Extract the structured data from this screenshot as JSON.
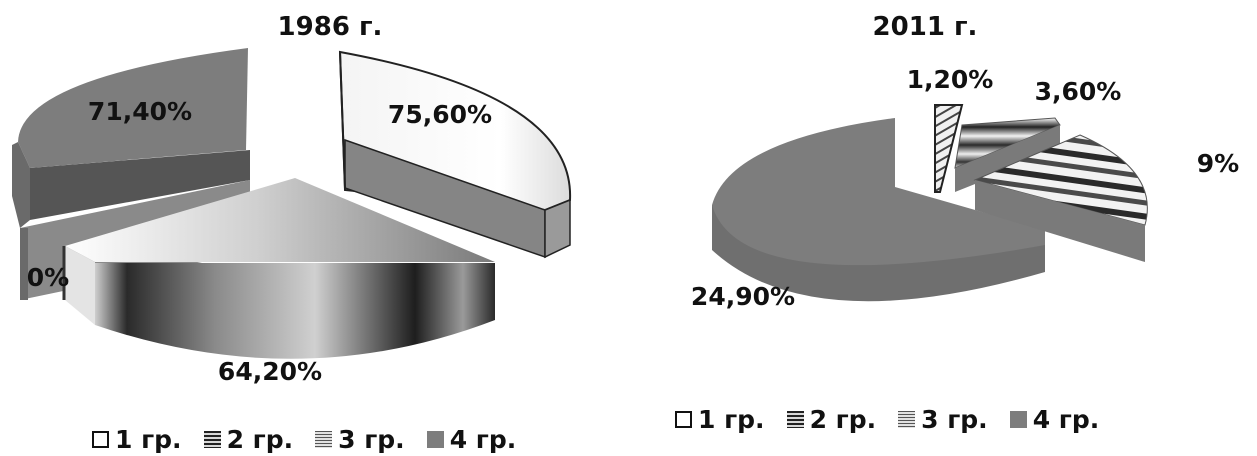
{
  "chart_data": [
    {
      "type": "pie",
      "title": "1986 г.",
      "categories": [
        "1 гр.",
        "2 гр.",
        "3 гр.",
        "4 гр."
      ],
      "values": [
        75.6,
        64.2,
        0,
        71.4
      ],
      "labels": [
        "75,60%",
        "64,20%",
        "0%",
        "71,40%"
      ],
      "legend": "bottom"
    },
    {
      "type": "pie",
      "title": "2011 г.",
      "categories": [
        "1 гр.",
        "2 гр.",
        "3 гр.",
        "4 гр."
      ],
      "values": [
        1.2,
        3.6,
        9,
        24.9
      ],
      "labels": [
        "1,20%",
        "3,60%",
        "9%",
        "24,90%"
      ],
      "legend": "bottom"
    }
  ],
  "colors": {
    "group1": "#ffffff",
    "group2": "#3a3a3a",
    "group3": "#b5b5b5",
    "group4": "#7d7d7d"
  }
}
